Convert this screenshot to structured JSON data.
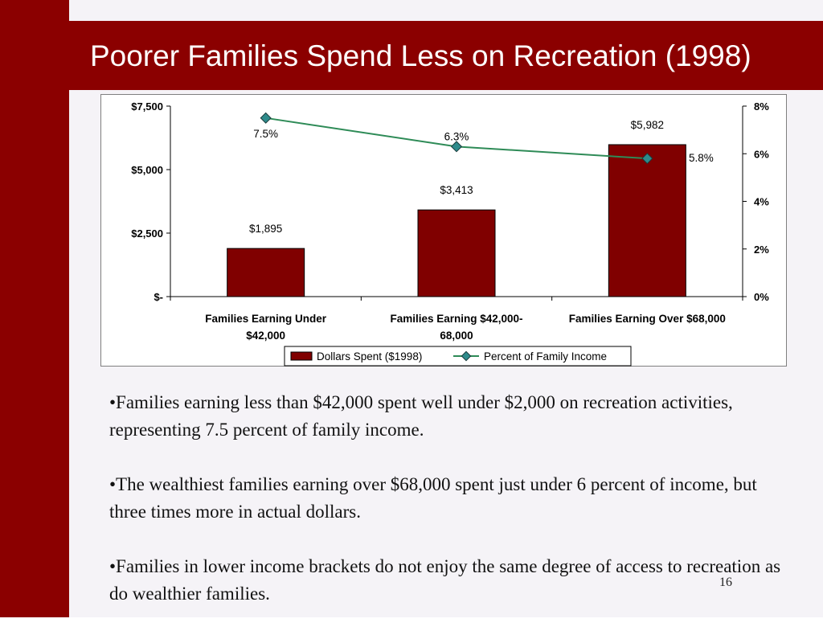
{
  "slide": {
    "title": "Poorer Families Spend Less on Recreation (1998)",
    "page_number": "16",
    "bullets": [
      "•Families earning less than $42,000 spent well under $2,000 on recreation activities, representing 7.5 percent of family income.",
      "•The wealthiest families earning over $68,000 spent just under 6 percent of income, but three times more in actual dollars.",
      "•Families in lower income brackets do not enjoy the same degree of access to recreation as do wealthier families."
    ],
    "colors": {
      "brand_red": "#8b0000",
      "bar_fill": "#800000",
      "line": "#2e8b57",
      "marker": "#2e8b8b"
    }
  },
  "chart_data": {
    "type": "bar",
    "categories": [
      [
        "Families Earning Under",
        "$42,000"
      ],
      [
        "Families Earning $42,000-",
        "68,000"
      ],
      [
        "Families Earning Over $68,000"
      ]
    ],
    "series": [
      {
        "name": "Dollars Spent ($1998)",
        "type": "bar",
        "axis": "left",
        "values": [
          1895,
          3413,
          5982
        ],
        "labels": [
          "$1,895",
          "$3,413",
          "$5,982"
        ]
      },
      {
        "name": "Percent of Family Income",
        "type": "line",
        "axis": "right",
        "values": [
          7.5,
          6.3,
          5.8
        ],
        "labels": [
          "7.5%",
          "6.3%",
          "5.8%"
        ]
      }
    ],
    "y_left": {
      "range": [
        0,
        7500
      ],
      "ticks": [
        0,
        2500,
        5000,
        7500
      ],
      "tick_labels": [
        "$-",
        "$2,500",
        "$5,000",
        "$7,500"
      ]
    },
    "y_right": {
      "range": [
        0,
        8
      ],
      "ticks": [
        0,
        2,
        4,
        6,
        8
      ],
      "tick_labels": [
        "0%",
        "2%",
        "4%",
        "6%",
        "8%"
      ]
    },
    "grid": false,
    "legend": "bottom"
  }
}
